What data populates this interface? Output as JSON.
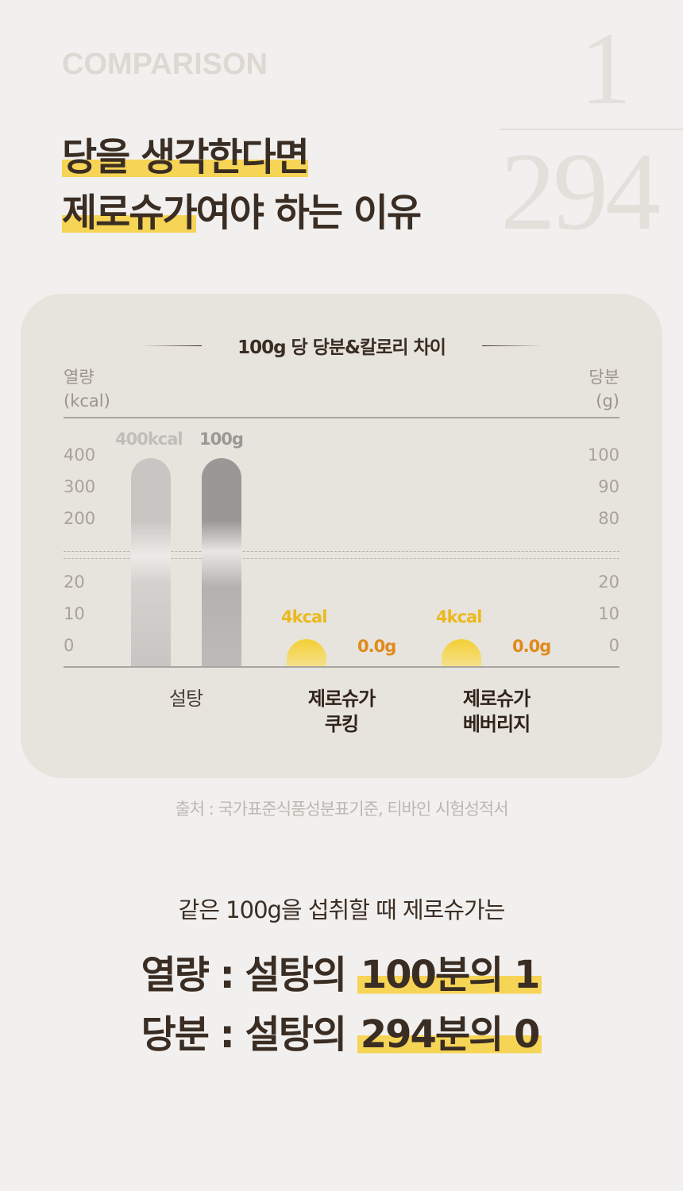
{
  "header": {
    "eyebrow": "COMPARISON",
    "ratio_top": "1",
    "ratio_bottom": "294",
    "title_line1": "당을 생각한다면",
    "title_line2_highlight": "제로슈가",
    "title_line2_rest": "여야 하는 이유"
  },
  "chart_data": {
    "type": "bar",
    "title": "100g 당 당분&칼로리 차이",
    "y_left_label": [
      "열량",
      "(kcal)"
    ],
    "y_right_label": [
      "당분",
      "(g)"
    ],
    "y_left_ticks_upper": [
      "400",
      "300",
      "200"
    ],
    "y_left_ticks_lower": [
      "20",
      "10",
      "0"
    ],
    "y_right_ticks_upper": [
      "100",
      "90",
      "80"
    ],
    "y_right_ticks_lower": [
      "20",
      "10",
      "0"
    ],
    "axis_break": true,
    "categories": [
      {
        "label": "설탕",
        "label_lines": [
          "설탕"
        ],
        "bold": false
      },
      {
        "label": "제로슈가 쿠킹",
        "label_lines": [
          "제로슈가",
          "쿠킹"
        ],
        "bold": true
      },
      {
        "label": "제로슈가 베버리지",
        "label_lines": [
          "제로슈가",
          "베버리지"
        ],
        "bold": true
      }
    ],
    "series": [
      {
        "name": "열량",
        "unit": "kcal",
        "values": [
          400,
          4,
          4
        ],
        "data_labels": [
          "400kcal",
          "4kcal",
          "4kcal"
        ]
      },
      {
        "name": "당분",
        "unit": "g",
        "values": [
          100,
          0.0,
          0.0
        ],
        "data_labels": [
          "100g",
          "0.0g",
          "0.0g"
        ]
      }
    ],
    "colors": {
      "sugar_kcal": "#c8c6c3",
      "sugar_g": "#9a9896",
      "zero": "#f3c82a",
      "zero_label_kcal": "#ebb91e",
      "zero_label_g": "#e08a1c"
    }
  },
  "footer": {
    "source": "출처 : 국가표준식품성분표기준, 티바인 시험성적서",
    "summary_sub": "같은 100g을 섭취할 때 제로슈가는",
    "line1_prefix": "열량 : 설탕의 ",
    "line1_highlight": "100분의 1",
    "line2_prefix": "당분 : 설탕의 ",
    "line2_highlight": "294분의 0"
  }
}
